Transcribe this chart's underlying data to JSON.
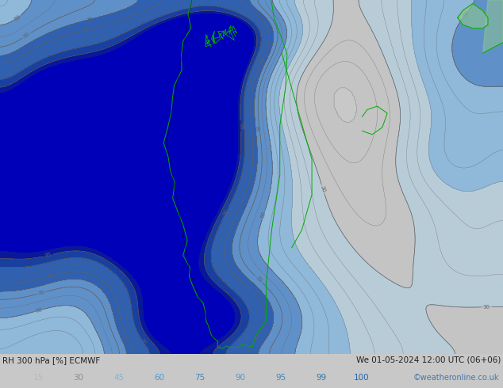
{
  "title_left": "RH 300 hPa [%] ECMWF",
  "title_right": "We 01-05-2024 12:00 UTC (06+06)",
  "credit": "©weatheronline.co.uk",
  "colorbar_levels": [
    15,
    30,
    45,
    60,
    75,
    90,
    95,
    99,
    100
  ],
  "cb_text_colors": [
    "#b8b8b8",
    "#909090",
    "#88b4cc",
    "#4d9ad4",
    "#4488c0",
    "#5599cc",
    "#4488bb",
    "#3377aa",
    "#2266aa"
  ],
  "bg_color": "#c8c8c8",
  "fill_colors": [
    "#c8c8c8",
    "#c4c4c4",
    "#b8ccd8",
    "#90b8d8",
    "#6090c8",
    "#3060b0",
    "#1840a0",
    "#081898",
    "#0000b8"
  ],
  "contour_color": "#606060",
  "coastline_color": "#00aa00",
  "text_color": "#202020",
  "credit_color": "#4477aa",
  "fig_width": 6.34,
  "fig_height": 4.9,
  "dpi": 100
}
